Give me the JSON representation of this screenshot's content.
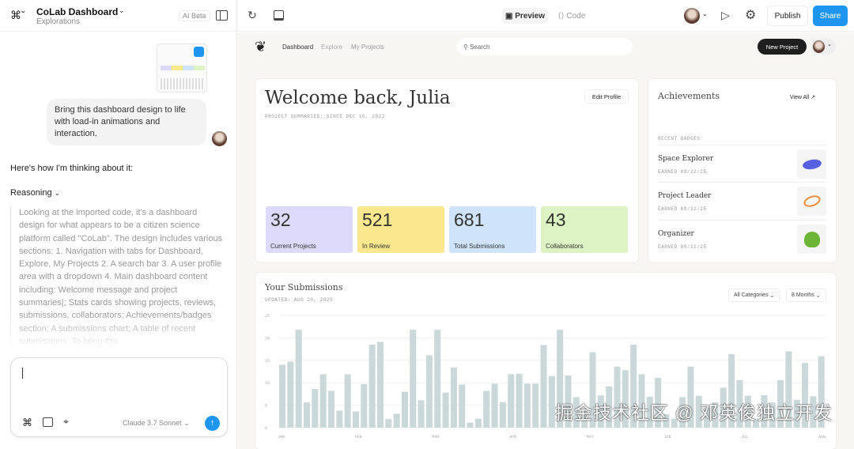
{
  "left": {
    "title": "CoLab Dashboard",
    "subtitle": "Explorations",
    "ai_badge": "AI Beta",
    "user_message": "Bring this dashboard design to life with load-in animations and interaction.",
    "assistant_intro": "Here's how I'm thinking about it:",
    "reasoning_label": "Reasoning",
    "reasoning_text": "Looking at the imported code, it's a dashboard design for what appears to be a citizen science platform called \"CoLab\". The design includes various sections: 1. Navigation with tabs for Dashboard, Explore, My Projects 2. A search bar 3. A user profile area with a dropdown 4. Main dashboard content including: Welcome message and project summaries|; Stats cards showing projects, reviews, submissions, collaborators; Achievements/badges section; A submissions chart; A table of recent submissions. To bring this",
    "composer": {
      "value": "",
      "model": "Claude 3.7 Sonnet"
    }
  },
  "toolbar": {
    "preview": "Preview",
    "code": "Code",
    "publish": "Publish",
    "share": "Share",
    "accent": "#1e96f0"
  },
  "app": {
    "nav": [
      "Dashboard",
      "Explore",
      "My Projects"
    ],
    "search_placeholder": "Search",
    "new_project": "New Project",
    "welcome": "Welcome back, Julia",
    "summary_since": "PROJECT SUMMARIES: SINCE DEC 10, 2022",
    "edit_profile": "Edit Profile",
    "stats": [
      {
        "value": "32",
        "label": "Current Projects",
        "color": "#dcd9fa"
      },
      {
        "value": "521",
        "label": "In Review",
        "color": "#fbe78e"
      },
      {
        "value": "681",
        "label": "Total Submissions",
        "color": "#cfe3fb"
      },
      {
        "value": "43",
        "label": "Collaborators",
        "color": "#def3c4"
      }
    ],
    "achievements": {
      "title": "Achievements",
      "view_all": "View All ↗",
      "recent": "RECENT BADGES",
      "badges": [
        {
          "name": "Space Explorer",
          "earned": "EARNED 09/22/25"
        },
        {
          "name": "Project Leader",
          "earned": "EARNED 09/22/25"
        },
        {
          "name": "Organizer",
          "earned": "EARNED 09/22/25"
        }
      ]
    },
    "submissions": {
      "title": "Your Submissions",
      "updated": "UPDATED: AUG 20, 2025",
      "category": "All Categories",
      "range": "8 Months"
    }
  },
  "chart_data": {
    "type": "bar",
    "ylim": [
      0,
      25
    ],
    "yticks": [
      "0",
      "5",
      "10",
      "15",
      "20",
      "25"
    ],
    "grid": true,
    "xticks": [
      "JAN",
      "FEB",
      "MAR",
      "APR",
      "MAY",
      "JUN",
      "JUL",
      "AUG"
    ],
    "bar_color": "#cbd8da",
    "values": [
      14,
      14.7,
      21.8,
      5.6,
      8.6,
      11.9,
      8.2,
      3.8,
      11.9,
      3.6,
      9.7,
      18.5,
      19.1,
      1.9,
      3.1,
      8,
      21.8,
      6.1,
      16.1,
      21.8,
      7.8,
      13.4,
      9.6,
      1.1,
      2,
      8.2,
      9.8,
      5.7,
      11.9,
      12,
      9.8,
      9.8,
      18.4,
      11.5,
      21.8,
      11.6,
      6.8,
      4,
      16.8,
      7.2,
      9.2,
      13.6,
      12.8,
      18.5,
      11.9,
      6.9,
      11.1,
      3,
      2,
      6.8,
      13.6,
      7.1,
      4.4,
      5.6,
      8.9,
      16.4,
      10.6,
      7.1,
      2,
      7.2,
      5.6,
      10.6,
      17,
      6.2,
      14.4,
      7,
      15.9
    ]
  },
  "watermark": "掘金技术社区 @ 邓英俊独立开发"
}
